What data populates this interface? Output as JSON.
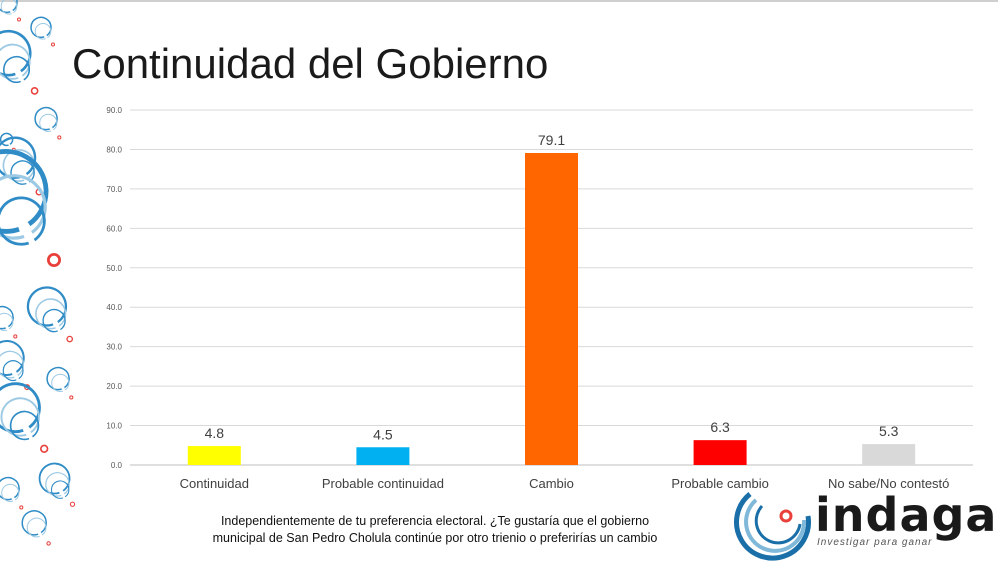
{
  "page": {
    "title": "Continuidad del Gobierno"
  },
  "chart_data": {
    "type": "bar",
    "title": "Continuidad del Gobierno",
    "categories": [
      "Continuidad",
      "Probable continuidad",
      "Cambio",
      "Probable cambio",
      "No sabe/No contestó"
    ],
    "values": [
      4.8,
      4.5,
      79.1,
      6.3,
      5.3
    ],
    "value_labels": [
      "4.8",
      "4.5",
      "79.1",
      "6.3",
      "5.3"
    ],
    "bar_colors": [
      "#ffff00",
      "#00b0f0",
      "#ff6600",
      "#ff0000",
      "#d9d9d9"
    ],
    "yticks": [
      "0.0",
      "10.0",
      "20.0",
      "30.0",
      "40.0",
      "50.0",
      "60.0",
      "70.0",
      "80.0",
      "90.0"
    ],
    "ylim": [
      0,
      90
    ],
    "grid": true,
    "xlabel": "",
    "ylabel": ""
  },
  "caption": {
    "line1": "Independientemente de tu preferencia electoral. ¿Te gustaría que el gobierno",
    "line2": "municipal de San Pedro Cholula continúe por otro trienio o preferirías un cambio"
  },
  "logo": {
    "name": "indaga",
    "tagline": "Investigar para ganar"
  }
}
